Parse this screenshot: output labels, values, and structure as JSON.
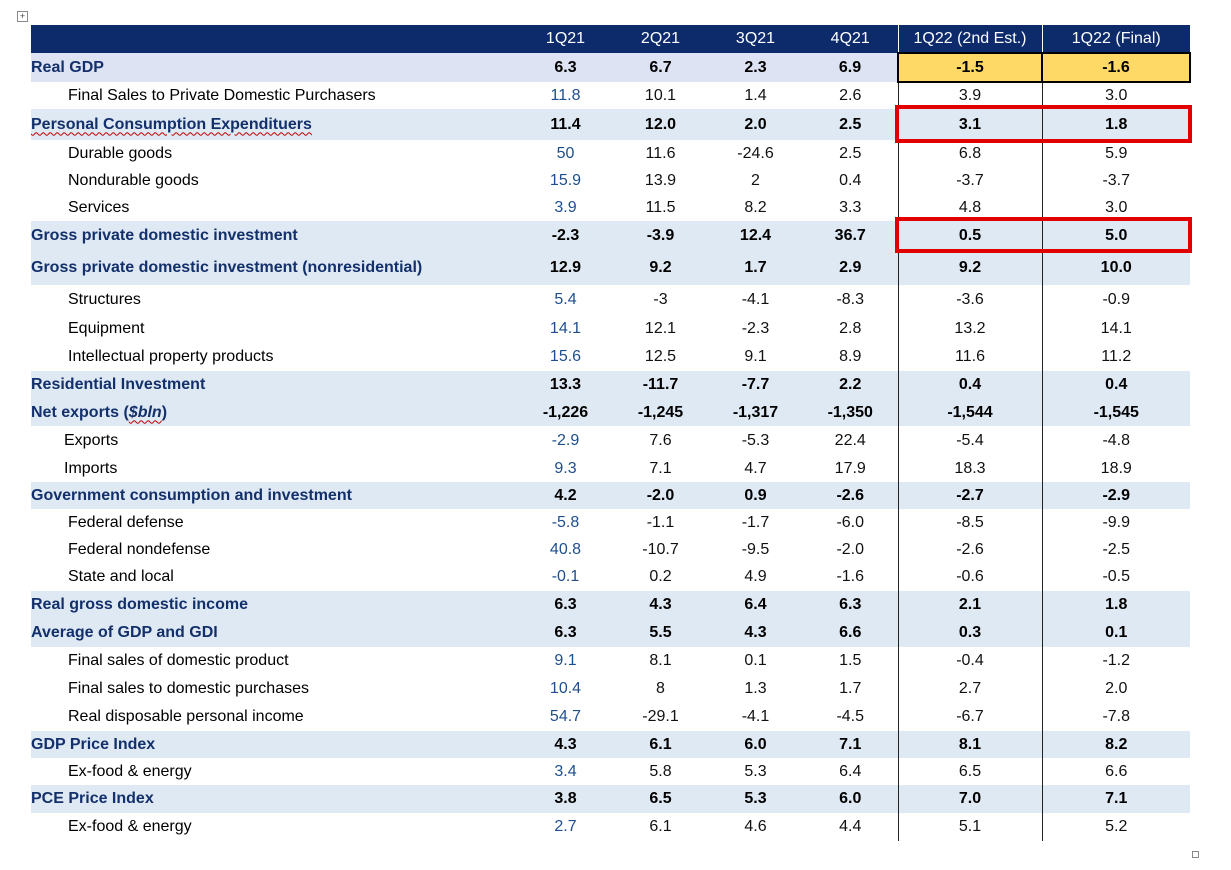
{
  "headers": [
    "",
    "1Q21",
    "2Q21",
    "3Q21",
    "4Q21",
    "1Q22 (2nd Est.)",
    "1Q22 (Final)"
  ],
  "rows": [
    {
      "label": "Real GDP",
      "values": [
        "6.3",
        "6.7",
        "2.3",
        "6.9",
        "-1.5",
        "-1.6"
      ],
      "style": "gdp"
    },
    {
      "label": "Final Sales to Private Domestic Purchasers",
      "values": [
        "11.8",
        "10.1",
        "1.4",
        "2.6",
        "3.9",
        "3.0"
      ],
      "style": "sub"
    },
    {
      "label": "Personal Consumption Expendituers",
      "values": [
        "11.4",
        "12.0",
        "2.0",
        "2.5",
        "3.1",
        "1.8"
      ],
      "style": "major",
      "misspelled": true
    },
    {
      "label": "Durable goods",
      "values": [
        "50",
        "11.6",
        "-24.6",
        "2.5",
        "6.8",
        "5.9"
      ],
      "style": "sub"
    },
    {
      "label": "Nondurable goods",
      "values": [
        "15.9",
        "13.9",
        "2",
        "0.4",
        "-3.7",
        "-3.7"
      ],
      "style": "sub"
    },
    {
      "label": "Services",
      "values": [
        "3.9",
        "11.5",
        "8.2",
        "3.3",
        "4.8",
        "3.0"
      ],
      "style": "sub"
    },
    {
      "label": "Gross private domestic investment",
      "values": [
        "-2.3",
        "-3.9",
        "12.4",
        "36.7",
        "0.5",
        "5.0"
      ],
      "style": "major"
    },
    {
      "label": "Gross private domestic investment (nonresidential)",
      "values": [
        "12.9",
        "9.2",
        "1.7",
        "2.9",
        "9.2",
        "10.0"
      ],
      "style": "major"
    },
    {
      "label": "Structures",
      "values": [
        "5.4",
        "-3",
        "-4.1",
        "-8.3",
        "-3.6",
        "-0.9"
      ],
      "style": "sub"
    },
    {
      "label": "Equipment",
      "values": [
        "14.1",
        "12.1",
        "-2.3",
        "2.8",
        "13.2",
        "14.1"
      ],
      "style": "sub"
    },
    {
      "label": "Intellectual property products",
      "values": [
        "15.6",
        "12.5",
        "9.1",
        "8.9",
        "11.6",
        "11.2"
      ],
      "style": "sub"
    },
    {
      "label": "Residential Investment",
      "values": [
        "13.3",
        "-11.7",
        "-7.7",
        "2.2",
        "0.4",
        "0.4"
      ],
      "style": "major"
    },
    {
      "label": "Net exports (",
      "label_italic": "$bln",
      "label_tail": ")",
      "values": [
        "-1,226",
        "-1,245",
        "-1,317",
        "-1,350",
        "-1,544",
        "-1,545"
      ],
      "style": "major"
    },
    {
      "label": "Exports",
      "values": [
        "-2.9",
        "7.6",
        "-5.3",
        "22.4",
        "-5.4",
        "-4.8"
      ],
      "style": "sub",
      "indent": "exp"
    },
    {
      "label": "Imports",
      "values": [
        "9.3",
        "7.1",
        "4.7",
        "17.9",
        "18.3",
        "18.9"
      ],
      "style": "sub",
      "indent": "exp"
    },
    {
      "label": "Government consumption and investment",
      "values": [
        "4.2",
        "-2.0",
        "0.9",
        "-2.6",
        "-2.7",
        "-2.9"
      ],
      "style": "major"
    },
    {
      "label": "Federal defense",
      "values": [
        "-5.8",
        "-1.1",
        "-1.7",
        "-6.0",
        "-8.5",
        "-9.9"
      ],
      "style": "sub"
    },
    {
      "label": "Federal nondefense",
      "values": [
        "40.8",
        "-10.7",
        "-9.5",
        "-2.0",
        "-2.6",
        "-2.5"
      ],
      "style": "sub"
    },
    {
      "label": "State and local",
      "values": [
        "-0.1",
        "0.2",
        "4.9",
        "-1.6",
        "-0.6",
        "-0.5"
      ],
      "style": "sub"
    },
    {
      "label": "Real gross domestic income",
      "values": [
        "6.3",
        "4.3",
        "6.4",
        "6.3",
        "2.1",
        "1.8"
      ],
      "style": "major"
    },
    {
      "label": "Average of GDP and GDI",
      "values": [
        "6.3",
        "5.5",
        "4.3",
        "6.6",
        "0.3",
        "0.1"
      ],
      "style": "major"
    },
    {
      "label": "Final sales of domestic product",
      "values": [
        "9.1",
        "8.1",
        "0.1",
        "1.5",
        "-0.4",
        "-1.2"
      ],
      "style": "sub"
    },
    {
      "label": "Final sales to domestic purchases",
      "values": [
        "10.4",
        "8",
        "1.3",
        "1.7",
        "2.7",
        "2.0"
      ],
      "style": "sub"
    },
    {
      "label": "Real disposable personal income",
      "values": [
        "54.7",
        "-29.1",
        "-4.1",
        "-4.5",
        "-6.7",
        "-7.8"
      ],
      "style": "sub"
    },
    {
      "label": "GDP Price Index",
      "values": [
        "4.3",
        "6.1",
        "6.0",
        "7.1",
        "8.1",
        "8.2"
      ],
      "style": "major"
    },
    {
      "label": "Ex-food & energy",
      "values": [
        "3.4",
        "5.8",
        "5.3",
        "6.4",
        "6.5",
        "6.6"
      ],
      "style": "sub"
    },
    {
      "label": "PCE Price Index",
      "values": [
        "3.8",
        "6.5",
        "5.3",
        "6.0",
        "7.0",
        "7.1"
      ],
      "style": "major"
    },
    {
      "label": "Ex-food & energy",
      "values": [
        "2.7",
        "6.1",
        "4.6",
        "4.4",
        "5.1",
        "5.2"
      ],
      "style": "sub"
    }
  ],
  "row_heights": [
    29,
    27,
    31,
    27,
    27,
    27,
    29,
    35,
    30,
    28,
    28,
    28,
    27,
    29,
    27,
    27,
    28,
    26,
    28,
    28,
    28,
    28,
    27,
    29,
    27,
    27,
    28,
    28
  ],
  "highlights": {
    "gdp_row_fill": "#ffd966",
    "red_box_color": "#e00000",
    "boxed_rows": [
      "Personal Consumption Expendituers",
      "Gross private domestic investment"
    ]
  },
  "colors": {
    "header_bg": "#0d2b6b",
    "major_row_bg": "#dfe9f4",
    "label_blue": "#13306b",
    "q1_sub_blue": "#1f4e8c"
  }
}
